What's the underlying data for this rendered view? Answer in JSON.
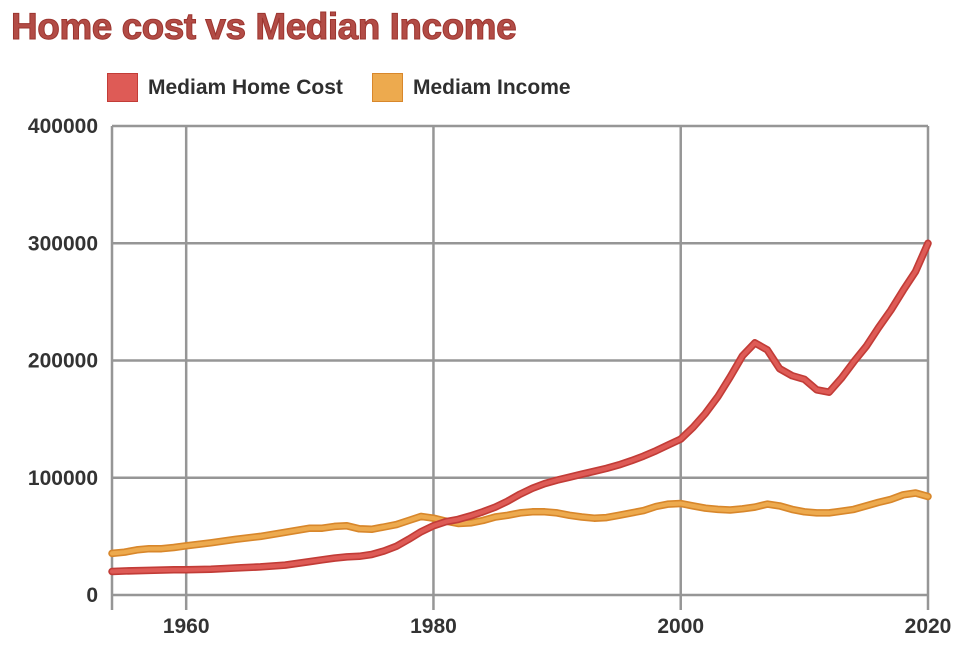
{
  "chart_data": {
    "type": "line",
    "title": "Home cost vs Median Income",
    "title_color": "#b24c46",
    "xlabel": "",
    "ylabel": "",
    "grid": true,
    "legend_position": "top-left",
    "axis_color": "#969696",
    "tick_label_color": "#333333",
    "x_axis": {
      "min": 1954,
      "max": 2020,
      "ticks": [
        1960,
        1980,
        2000,
        2020
      ]
    },
    "y_axis": {
      "min": 0,
      "max": 400000,
      "ticks": [
        0,
        100000,
        200000,
        300000,
        400000
      ],
      "tick_labels": [
        "0",
        "100000",
        "200000",
        "300000",
        "400000"
      ]
    },
    "series": [
      {
        "name": "Mediam Home Cost",
        "color": "#de5b56",
        "edge_color": "#c23c37",
        "points": [
          [
            1954,
            20000
          ],
          [
            1955,
            20500
          ],
          [
            1957,
            21000
          ],
          [
            1959,
            21500
          ],
          [
            1960,
            21500
          ],
          [
            1962,
            22000
          ],
          [
            1964,
            23000
          ],
          [
            1966,
            24000
          ],
          [
            1968,
            25500
          ],
          [
            1970,
            28500
          ],
          [
            1971,
            30000
          ],
          [
            1972,
            31500
          ],
          [
            1973,
            32500
          ],
          [
            1974,
            33000
          ],
          [
            1975,
            34500
          ],
          [
            1976,
            37500
          ],
          [
            1977,
            41500
          ],
          [
            1978,
            47500
          ],
          [
            1979,
            54000
          ],
          [
            1980,
            59000
          ],
          [
            1981,
            62500
          ],
          [
            1982,
            64500
          ],
          [
            1983,
            67500
          ],
          [
            1984,
            71000
          ],
          [
            1985,
            75000
          ],
          [
            1986,
            80000
          ],
          [
            1987,
            86000
          ],
          [
            1988,
            91000
          ],
          [
            1989,
            95000
          ],
          [
            1990,
            98000
          ],
          [
            1991,
            100500
          ],
          [
            1992,
            103000
          ],
          [
            1993,
            105500
          ],
          [
            1994,
            108000
          ],
          [
            1995,
            111000
          ],
          [
            1996,
            114500
          ],
          [
            1997,
            118500
          ],
          [
            1998,
            123000
          ],
          [
            1999,
            128000
          ],
          [
            2000,
            133000
          ],
          [
            2001,
            143000
          ],
          [
            2002,
            155000
          ],
          [
            2003,
            169000
          ],
          [
            2004,
            186000
          ],
          [
            2005,
            204000
          ],
          [
            2006,
            215000
          ],
          [
            2007,
            209000
          ],
          [
            2008,
            193000
          ],
          [
            2009,
            187000
          ],
          [
            2010,
            184000
          ],
          [
            2011,
            175000
          ],
          [
            2012,
            173000
          ],
          [
            2013,
            185000
          ],
          [
            2014,
            199000
          ],
          [
            2015,
            212000
          ],
          [
            2016,
            228000
          ],
          [
            2017,
            243000
          ],
          [
            2018,
            260000
          ],
          [
            2019,
            276000
          ],
          [
            2020,
            300000
          ]
        ]
      },
      {
        "name": "Mediam Income",
        "color": "#edaa4e",
        "edge_color": "#d8872b",
        "points": [
          [
            1954,
            35500
          ],
          [
            1955,
            36500
          ],
          [
            1956,
            38500
          ],
          [
            1957,
            39500
          ],
          [
            1958,
            39500
          ],
          [
            1959,
            40500
          ],
          [
            1960,
            42000
          ],
          [
            1962,
            44500
          ],
          [
            1964,
            47500
          ],
          [
            1966,
            50000
          ],
          [
            1968,
            53500
          ],
          [
            1970,
            57000
          ],
          [
            1971,
            57000
          ],
          [
            1972,
            58500
          ],
          [
            1973,
            59000
          ],
          [
            1974,
            56500
          ],
          [
            1975,
            56000
          ],
          [
            1976,
            58000
          ],
          [
            1977,
            60000
          ],
          [
            1978,
            63500
          ],
          [
            1979,
            67000
          ],
          [
            1980,
            65500
          ],
          [
            1981,
            63000
          ],
          [
            1982,
            61000
          ],
          [
            1983,
            61500
          ],
          [
            1984,
            63500
          ],
          [
            1985,
            66500
          ],
          [
            1986,
            68000
          ],
          [
            1987,
            70000
          ],
          [
            1988,
            71000
          ],
          [
            1989,
            71000
          ],
          [
            1990,
            70000
          ],
          [
            1991,
            68000
          ],
          [
            1992,
            66500
          ],
          [
            1993,
            65500
          ],
          [
            1994,
            66000
          ],
          [
            1995,
            68000
          ],
          [
            1996,
            70000
          ],
          [
            1997,
            72000
          ],
          [
            1998,
            75500
          ],
          [
            1999,
            77500
          ],
          [
            2000,
            78000
          ],
          [
            2001,
            76000
          ],
          [
            2002,
            74000
          ],
          [
            2003,
            73000
          ],
          [
            2004,
            72500
          ],
          [
            2005,
            73500
          ],
          [
            2006,
            75000
          ],
          [
            2007,
            77500
          ],
          [
            2008,
            76000
          ],
          [
            2009,
            73000
          ],
          [
            2010,
            71000
          ],
          [
            2011,
            70000
          ],
          [
            2012,
            70000
          ],
          [
            2013,
            71500
          ],
          [
            2014,
            73000
          ],
          [
            2015,
            76000
          ],
          [
            2016,
            79000
          ],
          [
            2017,
            81500
          ],
          [
            2018,
            85500
          ],
          [
            2019,
            87000
          ],
          [
            2020,
            84000
          ]
        ]
      }
    ]
  }
}
